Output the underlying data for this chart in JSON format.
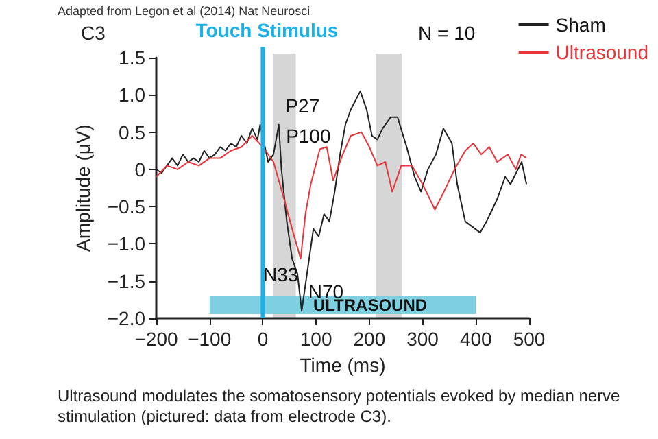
{
  "chart_data": {
    "type": "line",
    "title": "C3",
    "xlabel": "Time (ms)",
    "ylabel": "Amplitude (μV)",
    "x": [
      -200,
      -190,
      -180,
      -170,
      -160,
      -150,
      -140,
      -130,
      -120,
      -110,
      -100,
      -90,
      -80,
      -70,
      -60,
      -50,
      -40,
      -30,
      -20,
      -10,
      -5,
      10,
      20,
      30,
      35,
      45,
      55,
      65,
      73,
      85,
      95,
      105,
      115,
      125,
      135,
      145,
      155,
      165,
      183,
      195,
      205,
      215,
      225,
      240,
      253,
      270,
      285,
      297,
      310,
      325,
      339,
      355,
      365,
      380,
      408,
      420,
      440,
      455,
      465,
      486,
      495
    ],
    "series": [
      {
        "name": "Sham",
        "color": "#222222",
        "values": [
          0.0,
          -0.05,
          0.05,
          0.15,
          0.05,
          0.2,
          0.1,
          0.15,
          0.1,
          0.25,
          0.15,
          0.2,
          0.3,
          0.25,
          0.35,
          0.3,
          0.45,
          0.35,
          0.55,
          0.4,
          0.6,
          0.1,
          0.2,
          0.6,
          0.0,
          -0.7,
          -1.2,
          -1.4,
          -1.9,
          -1.3,
          -0.8,
          -0.9,
          -0.6,
          -0.7,
          -0.3,
          0.2,
          0.6,
          0.8,
          1.05,
          0.8,
          0.45,
          0.4,
          0.55,
          0.7,
          0.7,
          0.3,
          -0.1,
          -0.3,
          0.0,
          0.2,
          0.55,
          0.35,
          -0.2,
          -0.7,
          -0.85,
          -0.7,
          -0.4,
          -0.1,
          -0.2,
          0.1,
          -0.2
        ]
      },
      {
        "name": "Ultrasound",
        "color": "#e8343a",
        "x": [
          -200,
          -180,
          -160,
          -140,
          -120,
          -100,
          -80,
          -60,
          -40,
          -20,
          0,
          20,
          40,
          55,
          71,
          80,
          90,
          107,
          120,
          132,
          150,
          165,
          185,
          200,
          215,
          230,
          243,
          260,
          280,
          300,
          323,
          340,
          360,
          380,
          395,
          410,
          425,
          440,
          460,
          475,
          485,
          495
        ],
        "values": [
          -0.1,
          0.05,
          0.0,
          0.1,
          0.05,
          0.15,
          0.15,
          0.25,
          0.3,
          0.45,
          0.3,
          0.1,
          -0.4,
          -0.8,
          -1.2,
          -0.6,
          -0.2,
          0.27,
          0.3,
          -0.15,
          0.2,
          0.45,
          0.5,
          0.3,
          0.05,
          0.1,
          -0.3,
          0.05,
          0.05,
          -0.2,
          -0.54,
          -0.3,
          0.0,
          0.25,
          0.35,
          0.2,
          0.3,
          0.1,
          0.2,
          0.0,
          0.2,
          0.15
        ]
      }
    ],
    "xlim": [
      -200,
      500
    ],
    "xticks": [
      {
        "value": -200,
        "label": "−200"
      },
      {
        "value": -100,
        "label": "−100"
      },
      0,
      100,
      200,
      300,
      400,
      500
    ],
    "ylim": [
      -2,
      1.5
    ],
    "yticks": [
      {
        "value": -2,
        "label": "−2.0"
      },
      {
        "value": -1.5,
        "label": "−1.5"
      },
      {
        "value": -1,
        "label": "−1.0"
      },
      {
        "value": -0.5,
        "label": "−0.5"
      },
      0,
      0.5,
      {
        "value": 1,
        "label": "1.0"
      },
      1.5
    ],
    "legend": "top right",
    "marker": "none",
    "line_style": "solid",
    "ref_lines": [
      {
        "axis": "x",
        "value": 0,
        "label": "Touch Stimulus",
        "color": "#1ab0e8"
      }
    ],
    "bands": [
      {
        "axis": "x",
        "from": 19,
        "to": 62,
        "color": "#d6d6d6"
      },
      {
        "axis": "x",
        "from": 212,
        "to": 261,
        "color": "#d6d6d6"
      },
      {
        "axis": "x",
        "from": -100,
        "to": 400,
        "label": "ULTRASOUND",
        "color": "#7ecfe0"
      }
    ],
    "annotations": [
      {
        "text": "P27",
        "x": 27,
        "y": 0.6
      },
      {
        "text": "P100",
        "x": 100,
        "y": 0.27
      },
      {
        "text": "N70",
        "x": 70,
        "y": -1.9
      },
      "N33",
      "N = 10",
      "Adapted from Legon et al (2014) Nat Neurosci",
      "Ultrasound modulates the somatosensory potentials evoked by median nerve stimulation (pictured: data from electrode C3)."
    ]
  }
}
